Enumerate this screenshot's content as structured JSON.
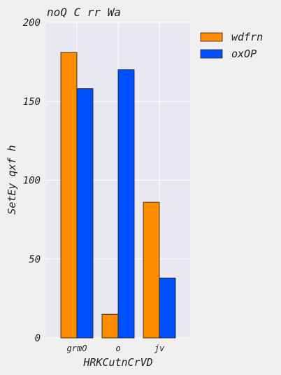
{
  "chart_data": {
    "type": "bar",
    "title": "noQ C rr Wa",
    "xlabel": "HRKCutnCrVD",
    "ylabel": "SetEy qxf h",
    "categories": [
      "grmO",
      "o",
      "jv"
    ],
    "series": [
      {
        "name": "wdfrn",
        "values": [
          181,
          15,
          86
        ],
        "color": "#ff8c00"
      },
      {
        "name": "oxOP",
        "values": [
          158,
          170,
          38
        ],
        "color": "#0050ff"
      }
    ],
    "ylim": [
      0,
      200
    ],
    "yticks": [
      0,
      50,
      100,
      150,
      200
    ],
    "grid": true,
    "legend_position": "outside-top-right",
    "plot_background": "#e8e9f2"
  }
}
